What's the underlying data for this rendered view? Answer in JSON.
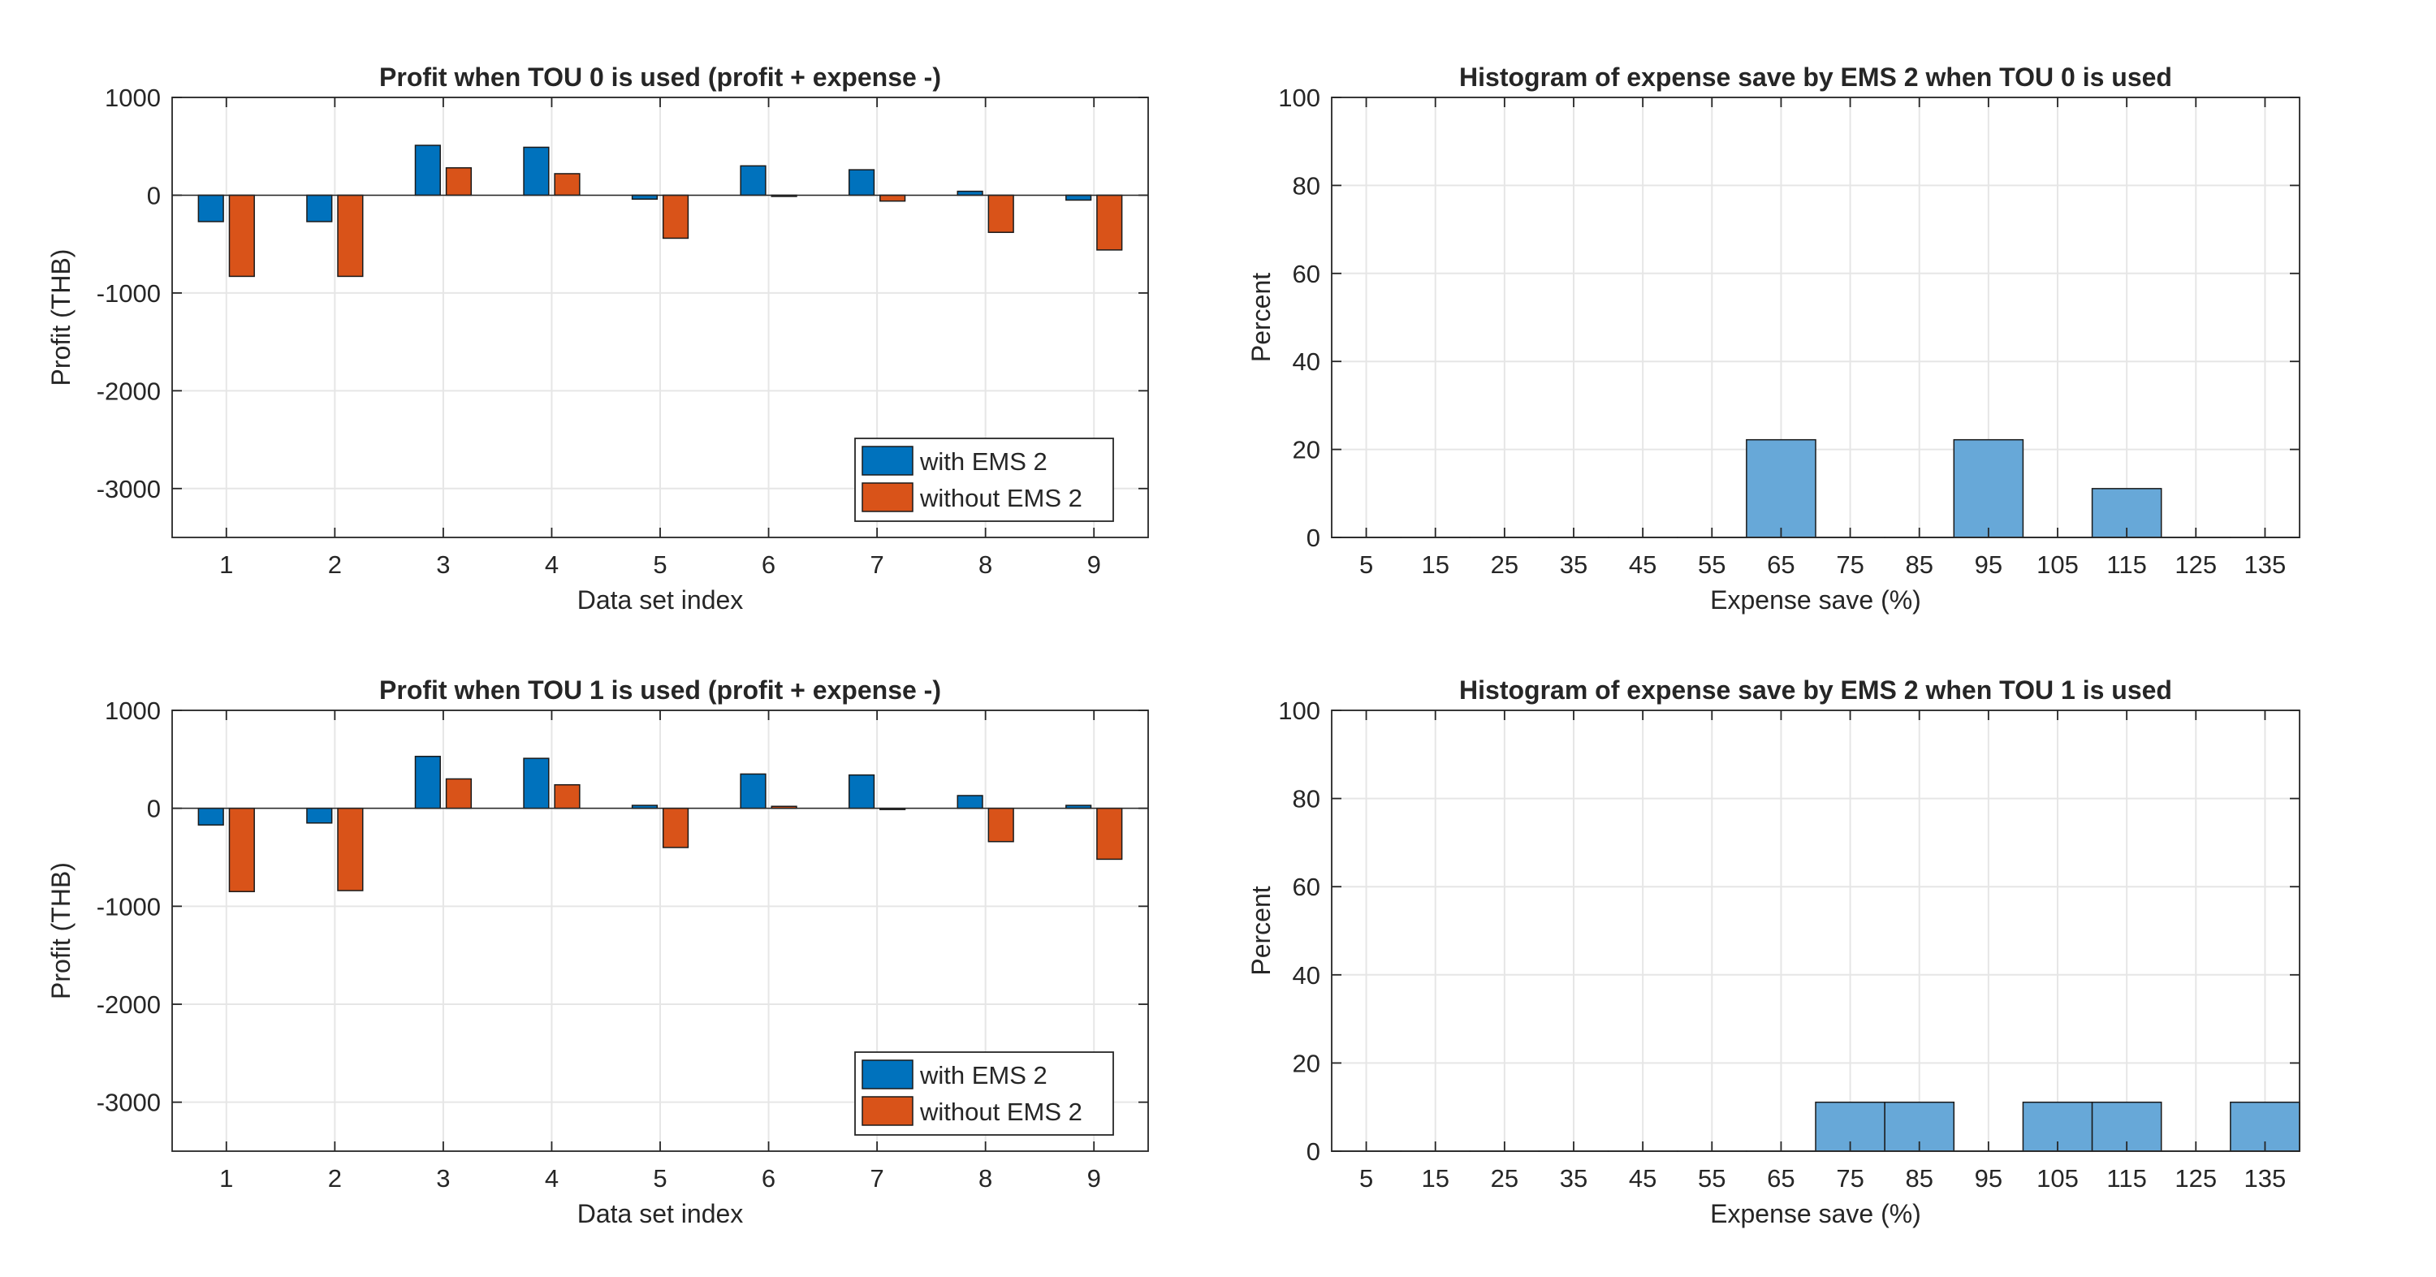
{
  "colors": {
    "with": "#0072BD",
    "without": "#D95319",
    "hist": "#67A8D8",
    "grid": "#E6E6E6",
    "axis": "#262626"
  },
  "chart_data": [
    {
      "type": "bar",
      "title": "Profit when TOU 0 is used (profit + expense -)",
      "xlabel": "Data set index",
      "ylabel": "Profit (THB)",
      "categories": [
        "1",
        "2",
        "3",
        "4",
        "5",
        "6",
        "7",
        "8",
        "9"
      ],
      "ylim": [
        -3500,
        1000
      ],
      "yticks": [
        1000,
        0,
        -1000,
        -2000,
        -3000
      ],
      "grid": true,
      "legend_position": "bottom-right",
      "series": [
        {
          "name": "with EMS 2",
          "values": [
            -270,
            -270,
            510,
            490,
            -40,
            300,
            260,
            40,
            -50
          ]
        },
        {
          "name": "without EMS 2",
          "values": [
            -830,
            -830,
            280,
            220,
            -440,
            -10,
            -60,
            -380,
            -560
          ]
        }
      ]
    },
    {
      "type": "bar",
      "title": "Histogram of expense save by EMS 2 when TOU 0 is used",
      "xlabel": "Expense save (%)",
      "ylabel": "Percent",
      "categories": [
        "5",
        "15",
        "25",
        "35",
        "45",
        "55",
        "65",
        "75",
        "85",
        "95",
        "105",
        "115",
        "125",
        "135"
      ],
      "values": [
        0,
        0,
        0,
        0,
        0,
        0,
        22.2,
        0,
        0,
        22.2,
        0,
        11.1,
        0,
        0
      ],
      "ylim": [
        0,
        100
      ],
      "yticks": [
        0,
        20,
        40,
        60,
        80,
        100
      ],
      "grid": true
    },
    {
      "type": "bar",
      "title": "Profit when TOU 1 is used (profit + expense -)",
      "xlabel": "Data set index",
      "ylabel": "Profit (THB)",
      "categories": [
        "1",
        "2",
        "3",
        "4",
        "5",
        "6",
        "7",
        "8",
        "9"
      ],
      "ylim": [
        -3500,
        1000
      ],
      "yticks": [
        1000,
        0,
        -1000,
        -2000,
        -3000
      ],
      "grid": true,
      "legend_position": "bottom-right",
      "series": [
        {
          "name": "with EMS 2",
          "values": [
            -170,
            -150,
            530,
            510,
            30,
            350,
            340,
            130,
            30
          ]
        },
        {
          "name": "without EMS 2",
          "values": [
            -850,
            -840,
            300,
            240,
            -400,
            20,
            0,
            -340,
            -520
          ]
        }
      ]
    },
    {
      "type": "bar",
      "title": "Histogram of expense save by EMS 2 when TOU 1 is used",
      "xlabel": "Expense save (%)",
      "ylabel": "Percent",
      "categories": [
        "5",
        "15",
        "25",
        "35",
        "45",
        "55",
        "65",
        "75",
        "85",
        "95",
        "105",
        "115",
        "125",
        "135"
      ],
      "values": [
        0,
        0,
        0,
        0,
        0,
        0,
        0,
        11.1,
        11.1,
        0,
        11.1,
        11.1,
        0,
        11.1
      ],
      "ylim": [
        0,
        100
      ],
      "yticks": [
        0,
        20,
        40,
        60,
        80,
        100
      ],
      "grid": true
    }
  ]
}
